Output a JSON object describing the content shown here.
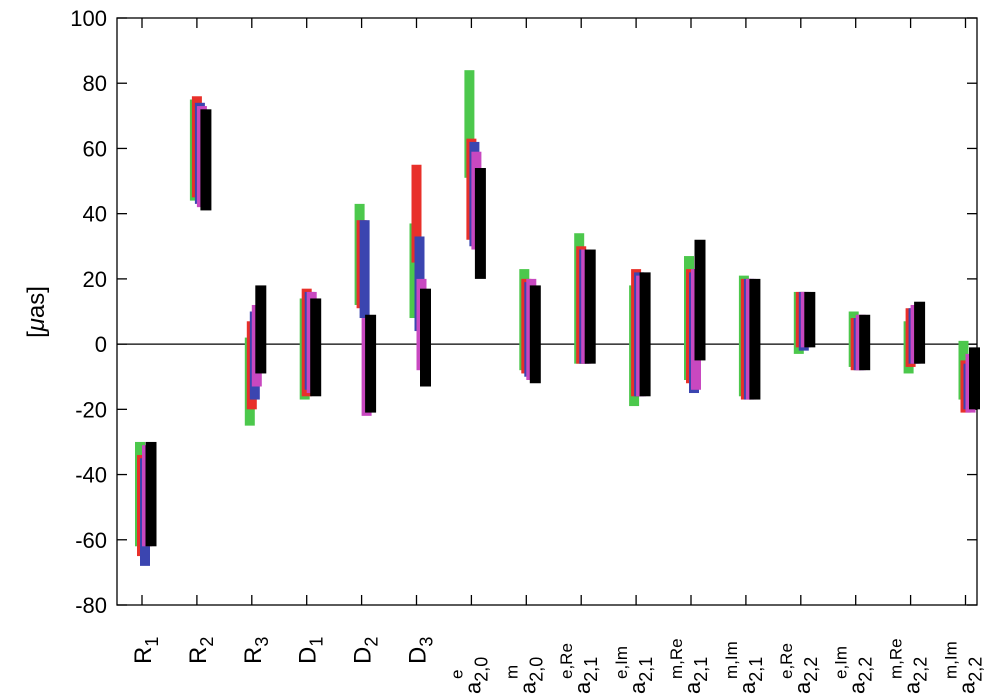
{
  "chart_data": {
    "type": "bar",
    "title": "",
    "xlabel": "",
    "ylabel": "[μas]",
    "ylabel_parts": {
      "open": "[",
      "mu": "μ",
      "unit": "as]"
    },
    "ylim": [
      -80,
      100
    ],
    "yticks": [
      -80,
      -60,
      -40,
      -20,
      0,
      20,
      40,
      60,
      80,
      100
    ],
    "ytick_labels": [
      "-80",
      "-60",
      "-40",
      "-20",
      "0",
      "20",
      "40",
      "60",
      "80",
      "100"
    ],
    "legend": "none",
    "grid": false,
    "zero_line": true,
    "categories": [
      {
        "id": "R1",
        "base": "R",
        "sub": "1",
        "sup": ""
      },
      {
        "id": "R2",
        "base": "R",
        "sub": "2",
        "sup": ""
      },
      {
        "id": "R3",
        "base": "R",
        "sub": "3",
        "sup": ""
      },
      {
        "id": "D1",
        "base": "D",
        "sub": "1",
        "sup": ""
      },
      {
        "id": "D2",
        "base": "D",
        "sub": "2",
        "sup": ""
      },
      {
        "id": "D3",
        "base": "D",
        "sub": "3",
        "sup": ""
      },
      {
        "id": "a20e",
        "base": "a",
        "sub": "2,0",
        "sup": "e"
      },
      {
        "id": "a20m",
        "base": "a",
        "sub": "2,0",
        "sup": "m"
      },
      {
        "id": "a21eRe",
        "base": "a",
        "sub": "2,1",
        "sup": "e,Re"
      },
      {
        "id": "a21eIm",
        "base": "a",
        "sub": "2,1",
        "sup": "e,Im"
      },
      {
        "id": "a21mRe",
        "base": "a",
        "sub": "2,1",
        "sup": "m,Re"
      },
      {
        "id": "a21mIm",
        "base": "a",
        "sub": "2,1",
        "sup": "m,Im"
      },
      {
        "id": "a22eRe",
        "base": "a",
        "sub": "2,2",
        "sup": "e,Re"
      },
      {
        "id": "a22eIm",
        "base": "a",
        "sub": "2,2",
        "sup": "e,Im"
      },
      {
        "id": "a22mRe",
        "base": "a",
        "sub": "2,2",
        "sup": "m,Re"
      },
      {
        "id": "a22mIm",
        "base": "a",
        "sub": "2,2",
        "sup": "m,Im"
      }
    ],
    "series": [
      {
        "color": "#4cc84c",
        "ranges": [
          [
            -62,
            -30
          ],
          [
            44,
            75
          ],
          [
            -25,
            2
          ],
          [
            -17,
            14
          ],
          [
            12,
            43
          ],
          [
            8,
            37
          ],
          [
            51,
            84
          ],
          [
            -8,
            23
          ],
          [
            -6,
            34
          ],
          [
            -19,
            18
          ],
          [
            -11,
            27
          ],
          [
            -16,
            21
          ],
          [
            -3,
            16
          ],
          [
            -7,
            10
          ],
          [
            -9,
            7
          ],
          [
            -17,
            1
          ]
        ]
      },
      {
        "color": "#e8302a",
        "ranges": [
          [
            -65,
            -34
          ],
          [
            45,
            76
          ],
          [
            -20,
            7
          ],
          [
            -16,
            17
          ],
          [
            11,
            38
          ],
          [
            25,
            55
          ],
          [
            32,
            63
          ],
          [
            -9,
            20
          ],
          [
            -6,
            30
          ],
          [
            -16,
            23
          ],
          [
            -12,
            23
          ],
          [
            -17,
            20
          ],
          [
            -1,
            16
          ],
          [
            -8,
            8
          ],
          [
            -7,
            11
          ],
          [
            -21,
            -5
          ]
        ]
      },
      {
        "color": "#3b45b0",
        "ranges": [
          [
            -68,
            -35
          ],
          [
            43,
            74
          ],
          [
            -17,
            10
          ],
          [
            -14,
            16
          ],
          [
            8,
            38
          ],
          [
            4,
            33
          ],
          [
            30,
            62
          ],
          [
            -10,
            19
          ],
          [
            -6,
            29
          ],
          [
            -16,
            22
          ],
          [
            -15,
            22
          ],
          [
            -17,
            20
          ],
          [
            -2,
            16
          ],
          [
            -8,
            8
          ],
          [
            -6,
            11
          ],
          [
            -20,
            -6
          ]
        ]
      },
      {
        "color": "#c848c0",
        "ranges": [
          [
            -62,
            -31
          ],
          [
            42,
            73
          ],
          [
            -13,
            12
          ],
          [
            -15,
            16
          ],
          [
            -22,
            8
          ],
          [
            -8,
            20
          ],
          [
            29,
            59
          ],
          [
            -11,
            20
          ],
          [
            -6,
            29
          ],
          [
            -16,
            21
          ],
          [
            -14,
            23
          ],
          [
            -17,
            20
          ],
          [
            -1,
            16
          ],
          [
            -8,
            9
          ],
          [
            -6,
            12
          ],
          [
            -21,
            -3
          ]
        ]
      },
      {
        "color": "#000000",
        "ranges": [
          [
            -62,
            -30
          ],
          [
            41,
            72
          ],
          [
            -9,
            18
          ],
          [
            -16,
            14
          ],
          [
            -21,
            9
          ],
          [
            -13,
            17
          ],
          [
            20,
            54
          ],
          [
            -12,
            18
          ],
          [
            -6,
            29
          ],
          [
            -16,
            22
          ],
          [
            -5,
            32
          ],
          [
            -17,
            20
          ],
          [
            -1,
            16
          ],
          [
            -8,
            9
          ],
          [
            -6,
            13
          ],
          [
            -20,
            -1
          ]
        ]
      }
    ]
  }
}
